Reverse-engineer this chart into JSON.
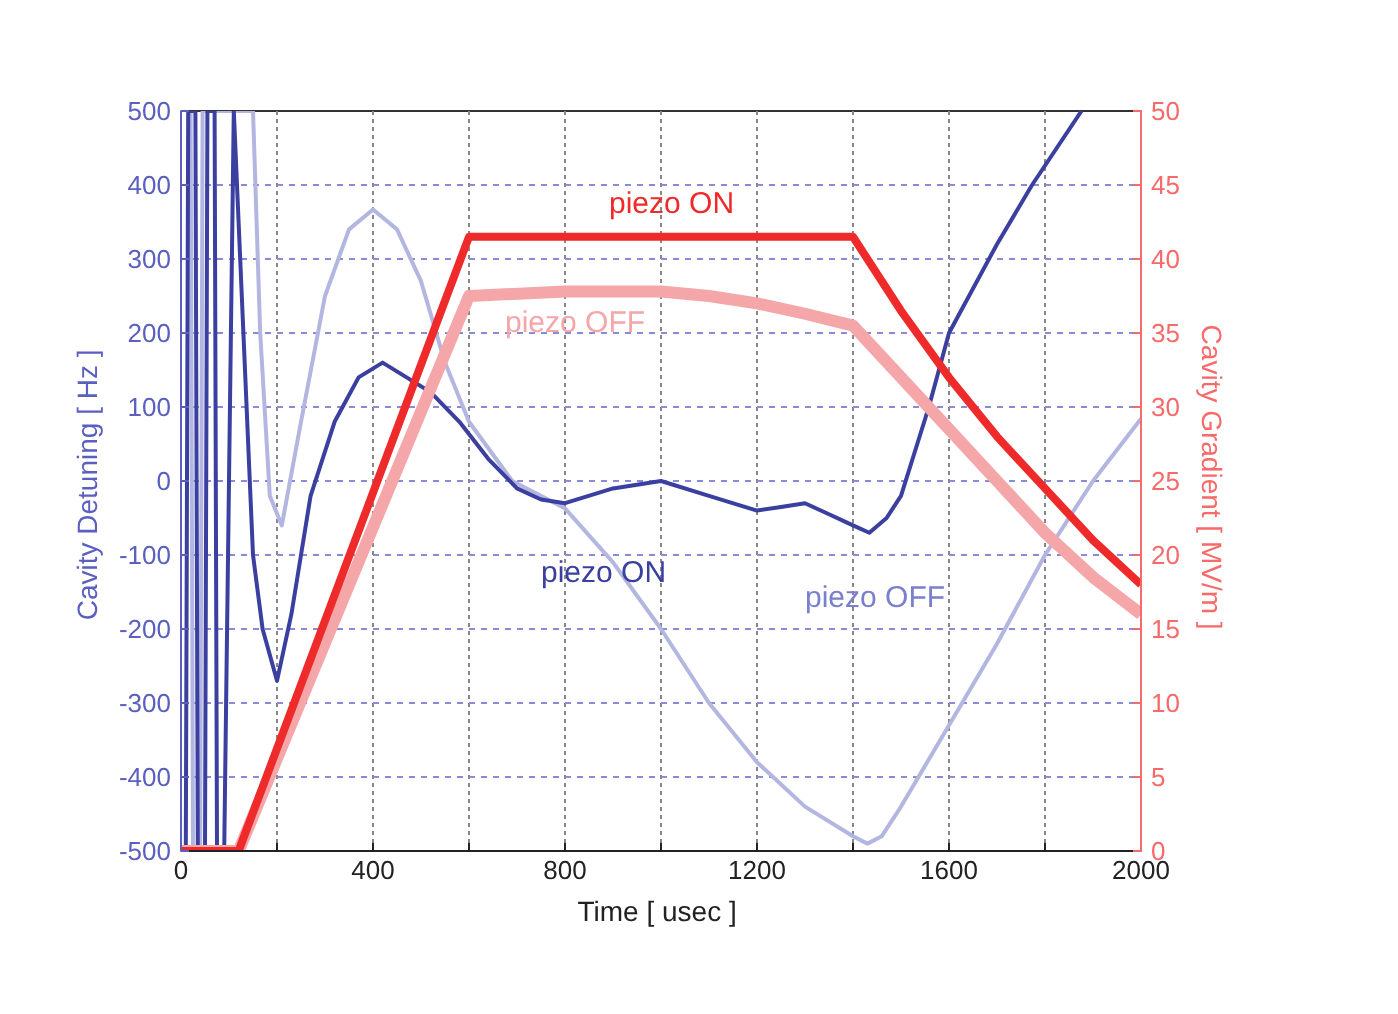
{
  "chart_data": {
    "type": "line",
    "xlabel": "Time  [ usec ]",
    "ylabel": "Cavity Detuning  [ Hz ]",
    "y2label": "Cavity Gradient  [ MV/m ]",
    "xlim": [
      0,
      2000
    ],
    "xticks": [
      0,
      {
        "value": 200,
        "label": null
      },
      400,
      {
        "value": 600,
        "label": null
      },
      800,
      {
        "value": 1000,
        "label": null
      },
      1200,
      {
        "value": 1400,
        "label": null
      },
      1600,
      {
        "value": 1800,
        "label": null
      },
      2000
    ],
    "ylim": [
      -500,
      500
    ],
    "yticks": [
      -500,
      -400,
      -300,
      -200,
      -100,
      0,
      100,
      200,
      300,
      400,
      500
    ],
    "y2lim": [
      0,
      50
    ],
    "y2ticks": [
      0,
      5,
      10,
      15,
      20,
      25,
      30,
      35,
      40,
      45,
      50
    ],
    "grid": true,
    "line_style": "solid",
    "series": [
      {
        "name": "piezo OFF",
        "color": "#b3b6e0",
        "x": [
          20,
          25,
          40,
          45,
          60,
          150,
          165,
          185,
          210,
          250,
          300,
          350,
          400,
          450,
          500,
          550,
          600,
          690,
          800,
          900,
          1000,
          1100,
          1200,
          1300,
          1400,
          1430,
          1460,
          1500,
          1600,
          1700,
          1800,
          1900,
          2000
        ],
        "values": [
          500,
          -500,
          -500,
          500,
          500,
          500,
          200,
          -20,
          -60,
          80,
          250,
          340,
          367,
          340,
          270,
          160,
          80,
          0,
          -37,
          -110,
          -200,
          -300,
          -380,
          -440,
          -480,
          -490,
          -480,
          -440,
          -330,
          -220,
          -100,
          0,
          84
        ]
      },
      {
        "name": "piezo ON",
        "color": "#3a3fa0",
        "x": [
          10,
          15,
          30,
          35,
          50,
          55,
          70,
          75,
          90,
          110,
          130,
          150,
          170,
          200,
          230,
          270,
          320,
          370,
          420,
          470,
          520,
          580,
          640,
          700,
          750,
          800,
          900,
          1000,
          1100,
          1200,
          1250,
          1300,
          1350,
          1400,
          1434,
          1470,
          1500,
          1558,
          1600,
          1700,
          1773,
          1876
        ],
        "values": [
          -500,
          500,
          500,
          -500,
          -500,
          500,
          500,
          -500,
          -500,
          500,
          200,
          -100,
          -200,
          -270,
          -180,
          -20,
          80,
          140,
          160,
          140,
          120,
          80,
          30,
          -10,
          -25,
          -30,
          -10,
          0,
          -20,
          -40,
          -35,
          -30,
          -45,
          -60,
          -70,
          -50,
          -20,
          100,
          200,
          320,
          400,
          500
        ]
      },
      {
        "name": "piezo OFF",
        "color": "#f4a6a8",
        "axis": "y2",
        "x": [
          0,
          120,
          600,
          800,
          1000,
          1100,
          1200,
          1300,
          1400,
          1500,
          1600,
          1700,
          1800,
          1900,
          2000
        ],
        "values": [
          0,
          0,
          37.5,
          37.8,
          37.8,
          37.5,
          37,
          36.3,
          35.5,
          32,
          28.5,
          25,
          21.5,
          18.5,
          16
        ]
      },
      {
        "name": "piezo ON",
        "color": "#ee2a2a",
        "axis": "y2",
        "x": [
          0,
          120,
          600,
          1400,
          1500,
          1600,
          1700,
          1800,
          1900,
          2000
        ],
        "values": [
          0,
          0,
          41.5,
          41.5,
          36.5,
          32,
          28,
          24.5,
          21,
          18
        ]
      }
    ]
  }
}
